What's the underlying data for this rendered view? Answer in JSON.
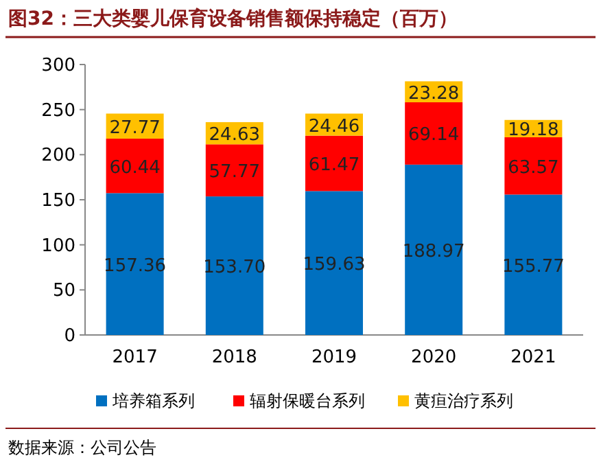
{
  "chart_data": {
    "type": "bar",
    "title": "图32：三大类婴儿保育设备销售额保持稳定（百万）",
    "stacked": true,
    "categories": [
      "2017",
      "2018",
      "2019",
      "2020",
      "2021"
    ],
    "series": [
      {
        "name": "培养箱系列",
        "color": "#0070c0",
        "values": [
          157.36,
          153.7,
          159.63,
          188.97,
          155.77
        ],
        "value_labels": [
          "157.36",
          "153.70",
          "159.63",
          "188.97",
          "155.77"
        ]
      },
      {
        "name": "辐射保暖台系列",
        "color": "#ff0000",
        "values": [
          60.44,
          57.77,
          61.47,
          69.14,
          63.57
        ],
        "value_labels": [
          "60.44",
          "57.77",
          "61.47",
          "69.14",
          "63.57"
        ]
      },
      {
        "name": "黄疸治疗系列",
        "color": "#ffc000",
        "values": [
          27.77,
          24.63,
          24.46,
          23.28,
          19.18
        ],
        "value_labels": [
          "27.77",
          "24.63",
          "24.46",
          "23.28",
          "19.18"
        ]
      }
    ],
    "ylim": [
      0,
      300
    ],
    "yticks": [
      0,
      50,
      100,
      150,
      200,
      250,
      300
    ],
    "grid": false,
    "legend": "bottom",
    "annotations": [
      "数据来源：公司公告"
    ]
  }
}
